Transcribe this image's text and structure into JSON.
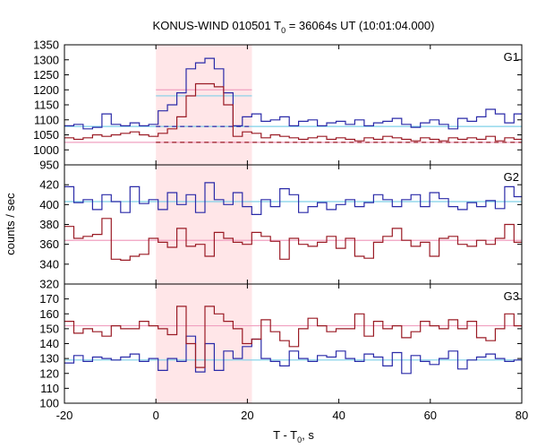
{
  "chart_data": {
    "type": "line",
    "title": "KONUS-WIND 010501 T",
    "title_sub": "0",
    "title_rest": " = 36064s UT (10:01:04.000)",
    "xlabel": "T - T",
    "xlabel_sub": "0",
    "xlabel_rest": ", s",
    "ylabel": "counts / sec",
    "xlim": [
      -20,
      80
    ],
    "xticks": [
      -20,
      0,
      20,
      40,
      60,
      80
    ],
    "xtick_labels": [
      "-20",
      "0",
      "20",
      "40",
      "60",
      "80"
    ],
    "highlight": {
      "x0": 0,
      "x1": 21,
      "color": "#ffe6e8"
    },
    "colors": {
      "blue": "#2a2aa8",
      "red": "#9a1a24",
      "lightblue": "#7fd0e8",
      "pink": "#f0a0c0"
    },
    "bin_width": 2.048,
    "x_start": -20,
    "panels": [
      {
        "label": "G1",
        "ylim": [
          950,
          1350
        ],
        "yticks": [
          950,
          1000,
          1050,
          1100,
          1150,
          1200,
          1250,
          1300,
          1350
        ],
        "ytick_labels": [
          "950",
          "1000",
          "1050",
          "1100",
          "1150",
          "1200",
          "1250",
          "1300",
          "1350"
        ],
        "series": [
          {
            "color": "blue",
            "values": [
              1080,
              1085,
              1070,
              1075,
              1120,
              1085,
              1080,
              1090,
              1080,
              1085,
              1130,
              1150,
              1190,
              1270,
              1290,
              1305,
              1270,
              1190,
              1080,
              1110,
              1120,
              1095,
              1100,
              1110,
              1080,
              1095,
              1100,
              1080,
              1090,
              1095,
              1085,
              1100,
              1080,
              1090,
              1095,
              1105,
              1085,
              1075,
              1090,
              1100,
              1085,
              1070,
              1105,
              1095,
              1110,
              1135,
              1120,
              1090,
              1120
            ]
          },
          {
            "color": "red",
            "values": [
              1040,
              1035,
              1040,
              1050,
              1045,
              1050,
              1055,
              1060,
              1050,
              1045,
              1055,
              1070,
              1110,
              1180,
              1220,
              1220,
              1210,
              1150,
              1045,
              1060,
              1055,
              1040,
              1050,
              1045,
              1040,
              1035,
              1040,
              1045,
              1035,
              1040,
              1035,
              1030,
              1040,
              1035,
              1045,
              1040,
              1035,
              1030,
              1040,
              1035,
              1030,
              1040,
              1035,
              1040,
              1035,
              1045,
              1030,
              1040,
              1035
            ]
          }
        ],
        "fit_lines": [
          {
            "color": "lightblue",
            "value": 1078,
            "style": "solid",
            "x0": -20,
            "x1": 80
          },
          {
            "color": "pink",
            "value": 1025,
            "style": "solid",
            "x0": -20,
            "x1": 80
          },
          {
            "color": "lightblue",
            "value": 1180,
            "style": "solid",
            "x0": 0,
            "x1": 21
          },
          {
            "color": "pink",
            "value": 1200,
            "style": "solid",
            "x0": 0,
            "x1": 21
          },
          {
            "color": "blue",
            "value": 1078,
            "style": "dashed",
            "x0": 0,
            "x1": 21
          },
          {
            "color": "red",
            "value": 1025,
            "style": "dashed",
            "x0": 0,
            "x1": 80
          }
        ]
      },
      {
        "label": "G2",
        "ylim": [
          320,
          440
        ],
        "yticks": [
          320,
          340,
          360,
          380,
          400,
          420
        ],
        "ytick_labels": [
          "320",
          "340",
          "360",
          "380",
          "400",
          "420"
        ],
        "series": [
          {
            "color": "blue",
            "values": [
              418,
              402,
              405,
              395,
              410,
              403,
              392,
              418,
              401,
              405,
              395,
              412,
              400,
              410,
              392,
              422,
              405,
              400,
              412,
              398,
              390,
              405,
              398,
              416,
              410,
              392,
              398,
              402,
              395,
              400,
              405,
              398,
              402,
              410,
              405,
              398,
              405,
              410,
              398,
              412,
              406,
              398,
              395,
              402,
              398,
              404,
              396,
              418,
              408
            ]
          },
          {
            "color": "red",
            "values": [
              378,
              366,
              368,
              370,
              386,
              345,
              344,
              348,
              350,
              366,
              362,
              357,
              376,
              358,
              360,
              348,
              372,
              366,
              362,
              360,
              372,
              368,
              363,
              345,
              366,
              360,
              358,
              362,
              368,
              356,
              366,
              348,
              346,
              362,
              368,
              376,
              364,
              358,
              362,
              348,
              366,
              368,
              360,
              358,
              364,
              360,
              366,
              380,
              362
            ]
          }
        ],
        "fit_lines": [
          {
            "color": "lightblue",
            "value": 403,
            "style": "solid",
            "x0": -20,
            "x1": 80
          },
          {
            "color": "pink",
            "value": 364,
            "style": "solid",
            "x0": -20,
            "x1": 80
          }
        ]
      },
      {
        "label": "G3",
        "ylim": [
          100,
          180
        ],
        "yticks": [
          100,
          110,
          120,
          130,
          140,
          150,
          160,
          170
        ],
        "ytick_labels": [
          "100",
          "110",
          "120",
          "130",
          "140",
          "150",
          "160",
          "170"
        ],
        "series": [
          {
            "color": "blue",
            "values": [
              127,
              132,
              128,
              131,
              130,
              129,
              131,
              133,
              128,
              130,
              122,
              130,
              128,
              145,
              121,
              140,
              122,
              135,
              130,
              138,
              143,
              130,
              128,
              125,
              135,
              130,
              128,
              132,
              131,
              135,
              130,
              128,
              133,
              131,
              125,
              134,
              120,
              132,
              128,
              126,
              130,
              135,
              123,
              129,
              131,
              133,
              130,
              128,
              129
            ]
          },
          {
            "color": "red",
            "values": [
              155,
              147,
              150,
              148,
              145,
              152,
              150,
              150,
              155,
              152,
              150,
              146,
              165,
              140,
              124,
              165,
              160,
              155,
              150,
              140,
              143,
              156,
              148,
              142,
              138,
              150,
              157,
              152,
              148,
              150,
              150,
              160,
              145,
              155,
              150,
              152,
              144,
              148,
              155,
              152,
              150,
              156,
              150,
              155,
              144,
              142,
              150,
              160,
              152
            ]
          }
        ],
        "fit_lines": [
          {
            "color": "lightblue",
            "value": 129,
            "style": "solid",
            "x0": -20,
            "x1": 80
          },
          {
            "color": "pink",
            "value": 152,
            "style": "solid",
            "x0": -20,
            "x1": 80
          }
        ]
      }
    ]
  }
}
